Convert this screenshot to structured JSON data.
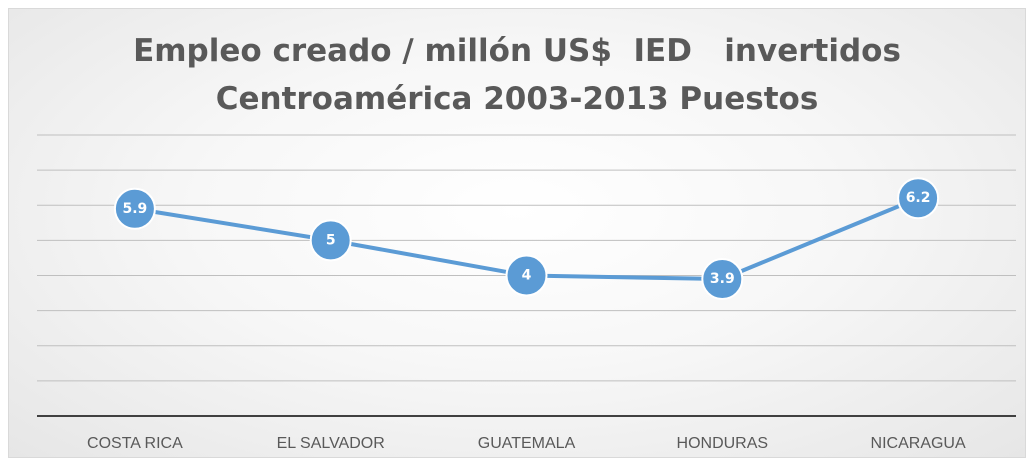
{
  "chart_data": {
    "type": "line",
    "title": "Empleo creado / millón US$  IED   invertidos",
    "subtitle": "Centroamérica 2003-2013 Puestos",
    "categories": [
      "COSTA RICA",
      "EL SALVADOR",
      "GUATEMALA",
      "HONDURAS",
      "NICARAGUA"
    ],
    "series": [
      {
        "values": [
          5.9,
          5,
          4,
          3.9,
          6.2
        ],
        "labels": [
          "5.9",
          "5",
          "4",
          "3.9",
          "6.2"
        ]
      }
    ],
    "ylim": [
      0,
      8
    ],
    "grid": true,
    "legend": "none",
    "colors": {
      "series": "#5b9bd5",
      "title": "#595959",
      "grid": "#bfbfbf",
      "axis": "#404040"
    }
  }
}
